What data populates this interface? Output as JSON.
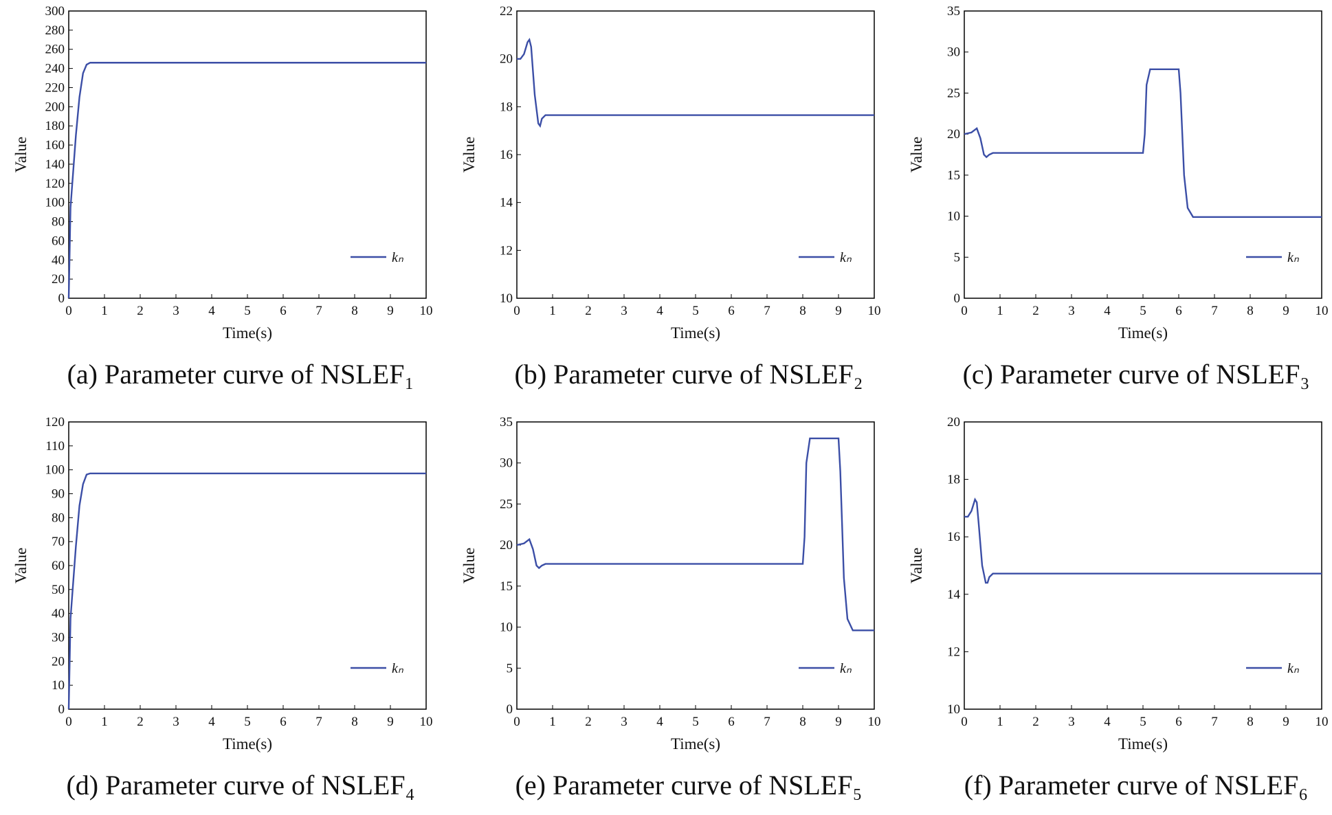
{
  "chart_data": [
    {
      "type": "line",
      "title": "(a) Parameter curve of NSLEF₁",
      "xlabel": "Time(s)",
      "ylabel": "Value",
      "x": [
        0,
        0.05,
        0.1,
        0.2,
        0.3,
        0.4,
        0.5,
        0.6,
        1,
        10
      ],
      "series": [
        {
          "name": "kₙ",
          "color": "#3b4ea6",
          "values": [
            0,
            95,
            120,
            170,
            210,
            235,
            244,
            246,
            246,
            246
          ]
        }
      ],
      "xlim": [
        0,
        10
      ],
      "xticks": [
        0,
        1,
        2,
        3,
        4,
        5,
        6,
        7,
        8,
        9,
        10
      ],
      "ylim": [
        0,
        300
      ],
      "yticks": [
        0,
        20,
        40,
        60,
        80,
        100,
        120,
        140,
        160,
        180,
        200,
        220,
        240,
        260,
        280,
        300
      ],
      "legend": "lower right"
    },
    {
      "type": "line",
      "title": "(b) Parameter curve of NSLEF₂",
      "xlabel": "Time(s)",
      "ylabel": "Value",
      "x": [
        0,
        0.1,
        0.2,
        0.3,
        0.35,
        0.4,
        0.5,
        0.6,
        0.65,
        0.7,
        0.8,
        1,
        10
      ],
      "series": [
        {
          "name": "kₙ",
          "color": "#3b4ea6",
          "values": [
            20,
            20,
            20.2,
            20.7,
            20.8,
            20.5,
            18.5,
            17.3,
            17.2,
            17.5,
            17.65,
            17.65,
            17.65
          ]
        }
      ],
      "xlim": [
        0,
        10
      ],
      "xticks": [
        0,
        1,
        2,
        3,
        4,
        5,
        6,
        7,
        8,
        9,
        10
      ],
      "ylim": [
        10,
        22
      ],
      "yticks": [
        10,
        12,
        14,
        16,
        18,
        20,
        22
      ],
      "legend": "lower right"
    },
    {
      "type": "line",
      "title": "(c) Parameter curve of NSLEF₃",
      "xlabel": "Time(s)",
      "ylabel": "Value",
      "x": [
        0,
        0.2,
        0.35,
        0.45,
        0.55,
        0.62,
        0.7,
        0.8,
        1,
        5,
        5.05,
        5.1,
        5.2,
        6,
        6.05,
        6.15,
        6.25,
        6.4,
        10
      ],
      "series": [
        {
          "name": "kₙ",
          "color": "#3b4ea6",
          "values": [
            20,
            20.2,
            20.7,
            19.5,
            17.5,
            17.2,
            17.5,
            17.7,
            17.7,
            17.7,
            20,
            26,
            27.9,
            27.9,
            25,
            15,
            11,
            9.9,
            9.9
          ]
        }
      ],
      "xlim": [
        0,
        10
      ],
      "xticks": [
        0,
        1,
        2,
        3,
        4,
        5,
        6,
        7,
        8,
        9,
        10
      ],
      "ylim": [
        0,
        35
      ],
      "yticks": [
        0,
        5,
        10,
        15,
        20,
        25,
        30,
        35
      ],
      "legend": "lower right"
    },
    {
      "type": "line",
      "title": "(d) Parameter curve of NSLEF₄",
      "xlabel": "Time(s)",
      "ylabel": "Value",
      "x": [
        0,
        0.05,
        0.1,
        0.2,
        0.3,
        0.4,
        0.5,
        0.6,
        10
      ],
      "series": [
        {
          "name": "kₙ",
          "color": "#3b4ea6",
          "values": [
            0,
            38,
            48,
            68,
            85,
            94,
            98,
            98.5,
            98.5
          ]
        }
      ],
      "xlim": [
        0,
        10
      ],
      "xticks": [
        0,
        1,
        2,
        3,
        4,
        5,
        6,
        7,
        8,
        9,
        10
      ],
      "ylim": [
        0,
        120
      ],
      "yticks": [
        0,
        10,
        20,
        30,
        40,
        50,
        60,
        70,
        80,
        90,
        100,
        110,
        120
      ],
      "legend": "lower right"
    },
    {
      "type": "line",
      "title": "(e) Parameter curve of NSLEF₅",
      "xlabel": "Time(s)",
      "ylabel": "Value",
      "x": [
        0,
        0.2,
        0.35,
        0.45,
        0.55,
        0.62,
        0.7,
        0.8,
        1,
        8,
        8.05,
        8.1,
        8.2,
        9,
        9.05,
        9.15,
        9.25,
        9.4,
        10
      ],
      "series": [
        {
          "name": "kₙ",
          "color": "#3b4ea6",
          "values": [
            20,
            20.2,
            20.7,
            19.5,
            17.5,
            17.2,
            17.5,
            17.7,
            17.7,
            17.7,
            21,
            30,
            33,
            33,
            29,
            16,
            11,
            9.6,
            9.6
          ]
        }
      ],
      "xlim": [
        0,
        10
      ],
      "xticks": [
        0,
        1,
        2,
        3,
        4,
        5,
        6,
        7,
        8,
        9,
        10
      ],
      "ylim": [
        0,
        35
      ],
      "yticks": [
        0,
        5,
        10,
        15,
        20,
        25,
        30,
        35
      ],
      "legend": "lower right"
    },
    {
      "type": "line",
      "title": "(f) Parameter curve of NSLEF₆",
      "xlabel": "Time(s)",
      "ylabel": "Value",
      "x": [
        0,
        0.1,
        0.2,
        0.3,
        0.35,
        0.4,
        0.5,
        0.6,
        0.65,
        0.7,
        0.8,
        10
      ],
      "series": [
        {
          "name": "kₙ",
          "color": "#3b4ea6",
          "values": [
            16.7,
            16.7,
            16.9,
            17.3,
            17.2,
            16.5,
            15,
            14.4,
            14.4,
            14.6,
            14.72,
            14.72
          ]
        }
      ],
      "xlim": [
        0,
        10
      ],
      "xticks": [
        0,
        1,
        2,
        3,
        4,
        5,
        6,
        7,
        8,
        9,
        10
      ],
      "ylim": [
        10,
        20
      ],
      "yticks": [
        10,
        12,
        14,
        16,
        18,
        20
      ],
      "legend": "lower right"
    }
  ]
}
